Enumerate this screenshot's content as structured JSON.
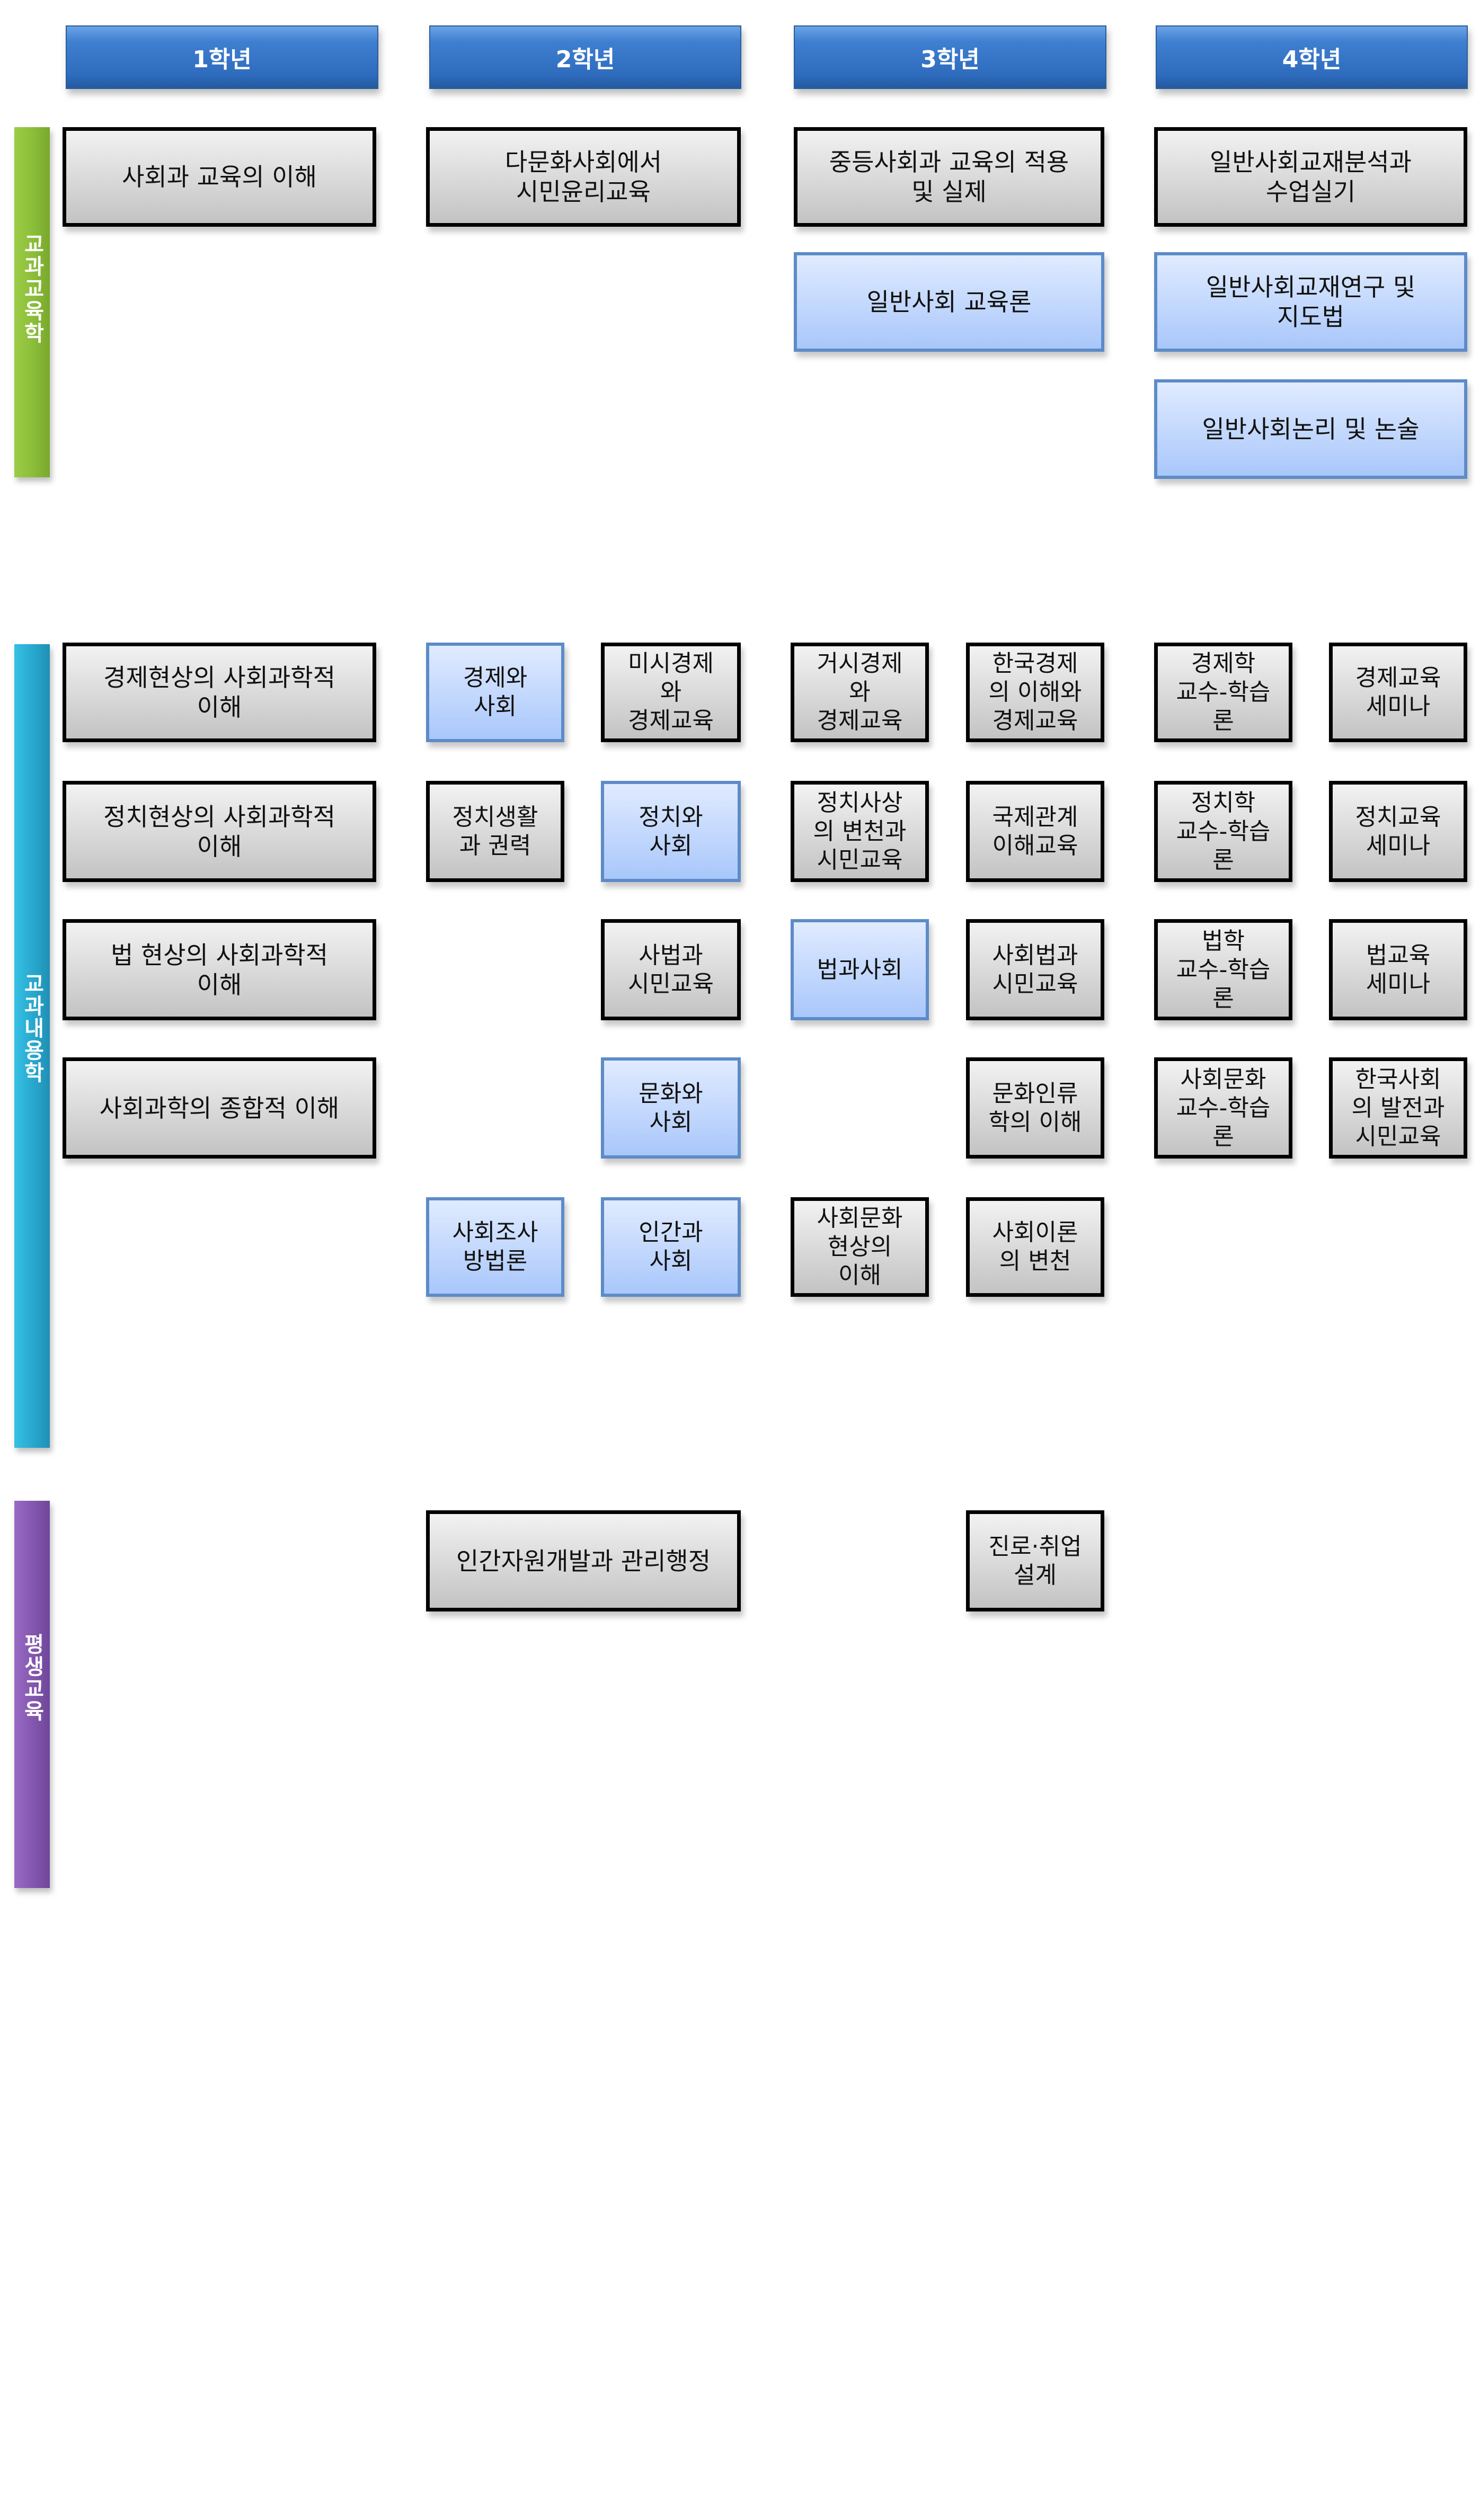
{
  "years": [
    "1학년",
    "2학년",
    "3학년",
    "4학년"
  ],
  "categories": [
    {
      "label": "교과교육학",
      "color": "#8cbf3a"
    },
    {
      "label": "교과내용학",
      "color": "#29a9cf"
    },
    {
      "label": "평생교육",
      "color": "#8458b0"
    }
  ],
  "colors": {
    "header": "#3f7fd0",
    "required_box": "#c3c3c3",
    "elective_box": "#a9c7fb"
  },
  "courses": [
    {
      "text": "사회과 교육의 이해",
      "style": "gray"
    },
    {
      "text": "다문화사회에서\n시민윤리교육",
      "style": "gray"
    },
    {
      "text": "중등사회과 교육의 적용\n및 실제",
      "style": "gray"
    },
    {
      "text": "일반사회교재분석과\n수업실기",
      "style": "gray"
    },
    {
      "text": "일반사회 교육론",
      "style": "blue"
    },
    {
      "text": "일반사회교재연구 및\n지도법",
      "style": "blue"
    },
    {
      "text": "일반사회논리 및 논술",
      "style": "blue"
    },
    {
      "text": "경제현상의 사회과학적\n이해",
      "style": "gray"
    },
    {
      "text": "경제와\n사회",
      "style": "blue"
    },
    {
      "text": "미시경제\n와\n경제교육",
      "style": "gray"
    },
    {
      "text": "거시경제\n와\n경제교육",
      "style": "gray"
    },
    {
      "text": "한국경제\n의 이해와\n경제교육",
      "style": "gray"
    },
    {
      "text": "경제학\n교수-학습\n론",
      "style": "gray"
    },
    {
      "text": "경제교육\n세미나",
      "style": "gray"
    },
    {
      "text": "정치현상의 사회과학적\n이해",
      "style": "gray"
    },
    {
      "text": "정치생활\n과 권력",
      "style": "gray"
    },
    {
      "text": "정치와\n사회",
      "style": "blue"
    },
    {
      "text": "정치사상\n의 변천과\n시민교육",
      "style": "gray"
    },
    {
      "text": "국제관계\n이해교육",
      "style": "gray"
    },
    {
      "text": "정치학\n교수-학습\n론",
      "style": "gray"
    },
    {
      "text": "정치교육\n세미나",
      "style": "gray"
    },
    {
      "text": "법 현상의 사회과학적\n이해",
      "style": "gray"
    },
    {
      "text": "사법과\n시민교육",
      "style": "gray"
    },
    {
      "text": "법과사회",
      "style": "blue"
    },
    {
      "text": "사회법과\n시민교육",
      "style": "gray"
    },
    {
      "text": "법학\n교수-학습\n론",
      "style": "gray"
    },
    {
      "text": "법교육\n세미나",
      "style": "gray"
    },
    {
      "text": "사회과학의 종합적 이해",
      "style": "gray"
    },
    {
      "text": "문화와\n사회",
      "style": "blue"
    },
    {
      "text": "문화인류\n학의 이해",
      "style": "gray"
    },
    {
      "text": "사회문화\n교수-학습\n론",
      "style": "gray"
    },
    {
      "text": "한국사회\n의 발전과\n시민교육",
      "style": "gray"
    },
    {
      "text": "사회조사\n방법론",
      "style": "blue"
    },
    {
      "text": "인간과\n사회",
      "style": "blue"
    },
    {
      "text": "사회문화\n현상의\n이해",
      "style": "gray"
    },
    {
      "text": "사회이론\n의 변천",
      "style": "gray"
    },
    {
      "text": "인간자원개발과 관리행정",
      "style": "gray"
    },
    {
      "text": "진로·취업\n설계",
      "style": "gray"
    }
  ]
}
